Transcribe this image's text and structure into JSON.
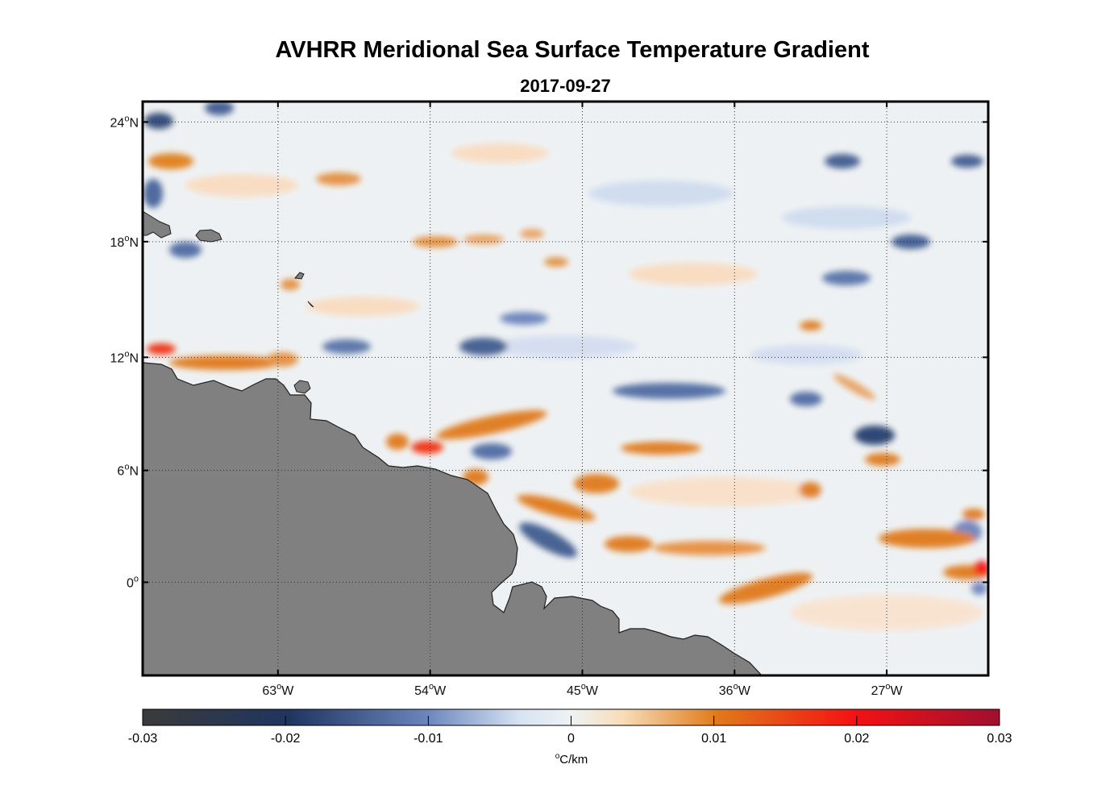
{
  "title": "AVHRR Meridional Sea Surface Temperature Gradient",
  "subtitle": "2017-09-27",
  "map": {
    "lon_range": [
      -71,
      -21
    ],
    "lat_range": [
      -5,
      25
    ],
    "lon_ticks": [
      {
        "lon": -63,
        "deg": "63",
        "hemi": "W"
      },
      {
        "lon": -54,
        "deg": "54",
        "hemi": "W"
      },
      {
        "lon": -45,
        "deg": "45",
        "hemi": "W"
      },
      {
        "lon": -36,
        "deg": "36",
        "hemi": "W"
      },
      {
        "lon": -27,
        "deg": "27",
        "hemi": "W"
      }
    ],
    "lat_ticks": [
      {
        "lat": 24,
        "deg": "24",
        "hemi": "N"
      },
      {
        "lat": 18,
        "deg": "18",
        "hemi": "N"
      },
      {
        "lat": 12,
        "deg": "12",
        "hemi": "N"
      },
      {
        "lat": 6,
        "deg": "6",
        "hemi": "N"
      },
      {
        "lat": 0,
        "deg": "0",
        "hemi": ""
      }
    ],
    "land_color": "#808080",
    "grid": "dotted"
  },
  "colorbar": {
    "ticks": [
      "-0.03",
      "-0.02",
      "-0.01",
      "0",
      "0.01",
      "0.02",
      "0.03"
    ],
    "units_deg": "o",
    "units_text": "C/km",
    "colors": [
      "#3a3a3a",
      "#1f3560",
      "#6a84bc",
      "#eef2f4",
      "#f8ddb8",
      "#e07a1a",
      "#f02010",
      "#a01030"
    ]
  }
}
